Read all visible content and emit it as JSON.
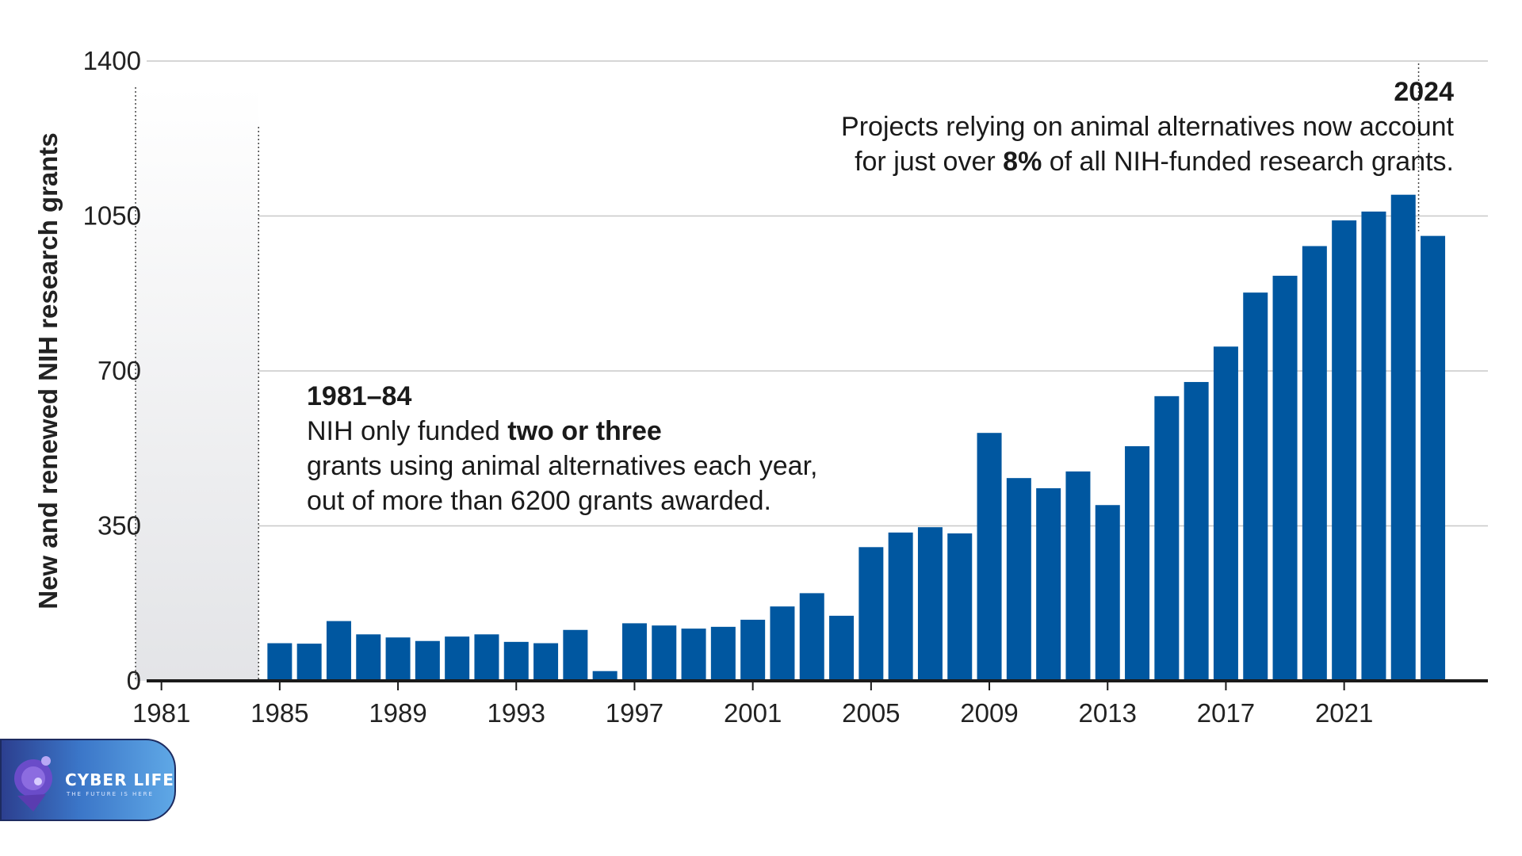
{
  "chart_data": {
    "type": "bar",
    "ylabel": "New and renewed NIH research grants",
    "xlabel": "",
    "ylim": [
      0,
      1400
    ],
    "yticks": [
      0,
      350,
      700,
      1050,
      1400
    ],
    "xticks": [
      1981,
      1985,
      1989,
      1993,
      1997,
      2001,
      2005,
      2009,
      2013,
      2017,
      2021
    ],
    "grid": "horizontal",
    "bar_color": "#0057a0",
    "shaded_range": [
      1981,
      1984
    ],
    "categories": [
      1985,
      1986,
      1987,
      1988,
      1989,
      1990,
      1991,
      1992,
      1993,
      1994,
      1995,
      1996,
      1997,
      1998,
      1999,
      2000,
      2001,
      2002,
      2003,
      2004,
      2005,
      2006,
      2007,
      2008,
      2009,
      2010,
      2011,
      2012,
      2013,
      2014,
      2015,
      2016,
      2017,
      2018,
      2019,
      2020,
      2021,
      2022,
      2023,
      2024
    ],
    "values": [
      85,
      84,
      135,
      105,
      98,
      90,
      100,
      105,
      88,
      85,
      115,
      22,
      130,
      125,
      118,
      122,
      138,
      168,
      198,
      147,
      302,
      335,
      347,
      333,
      560,
      458,
      435,
      473,
      397,
      530,
      643,
      675,
      755,
      877,
      915,
      982,
      1040,
      1060,
      1098,
      1005
    ],
    "annotations": [
      {
        "id": "early",
        "title": "1981–84",
        "line1_pre": "NIH only funded ",
        "line1_bold": "two or three",
        "line2": "grants using animal alternatives each year,",
        "line3": "out of more than 6200 grants awarded."
      },
      {
        "id": "latest",
        "title": "2024",
        "line1": "Projects relying on animal alternatives now account",
        "line2_pre": "for just over ",
        "line2_bold": "8%",
        "line2_post": " of all NIH-funded research grants."
      }
    ]
  },
  "logo": {
    "brand": "CYBER LIFE",
    "tagline": "THE FUTURE IS HERE"
  }
}
